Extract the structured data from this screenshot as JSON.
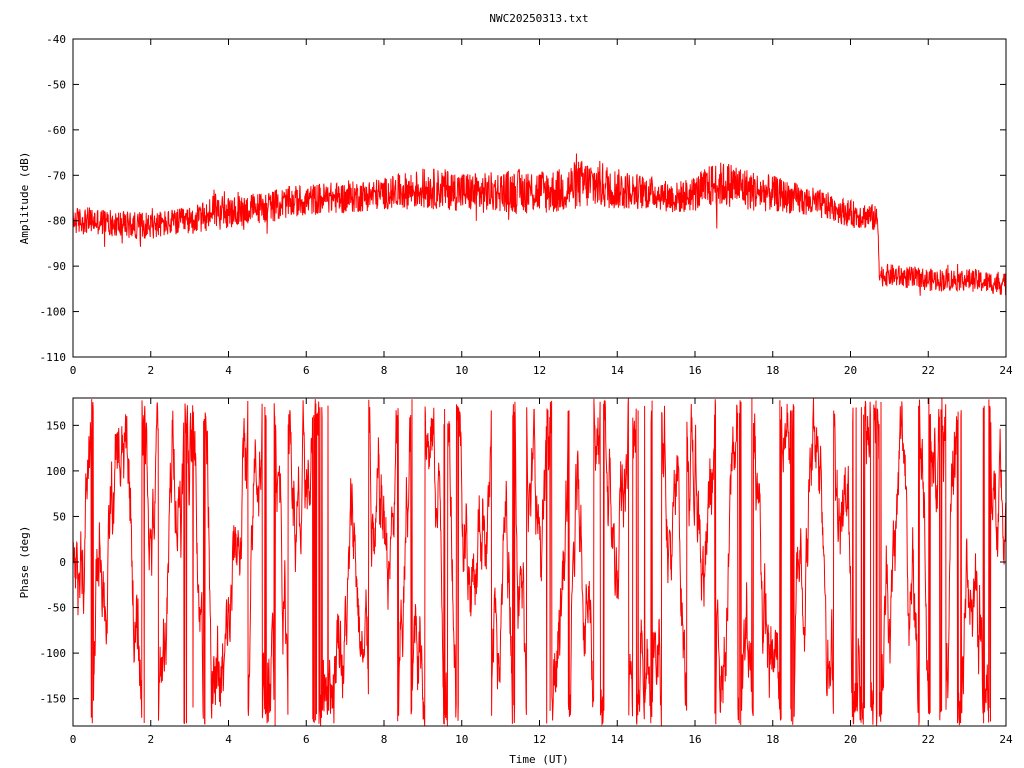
{
  "title": "NWC20250313.txt",
  "colors": {
    "trace": "#ff0000",
    "axis": "#000000",
    "background": "#ffffff"
  },
  "chart_data": [
    {
      "type": "line",
      "xlabel": "",
      "ylabel": "Amplitude (dB)",
      "xlim": [
        0,
        24
      ],
      "ylim": [
        -110,
        -40
      ],
      "xticks": [
        "0",
        "2",
        "4",
        "6",
        "8",
        "10",
        "12",
        "14",
        "16",
        "18",
        "20",
        "22",
        "24"
      ],
      "yticks": [
        "-40",
        "-50",
        "-60",
        "-70",
        "-80",
        "-90",
        "-100",
        "-110"
      ],
      "grid": false,
      "trace_x": [
        0,
        0.5,
        1,
        1.5,
        2,
        2.5,
        3,
        3.5,
        3.6,
        3.7,
        4,
        4.5,
        5,
        5.5,
        6,
        6.5,
        7,
        7.5,
        8,
        8.5,
        9,
        9.5,
        10,
        10.5,
        11,
        11.5,
        12,
        12.5,
        13,
        13.5,
        14,
        14.5,
        15,
        15.5,
        16,
        16.5,
        17,
        17.5,
        18,
        18.5,
        19,
        19.5,
        20,
        20.5,
        20.7,
        20.75,
        21,
        21.5,
        22,
        22.5,
        23,
        23.5,
        24
      ],
      "trace_mean": [
        -80,
        -80,
        -80.5,
        -81,
        -81,
        -80.5,
        -80,
        -79,
        -76,
        -78,
        -78.5,
        -77.5,
        -77,
        -76,
        -75.5,
        -75,
        -75,
        -74.5,
        -74,
        -73.5,
        -73,
        -73,
        -73.5,
        -74,
        -73.5,
        -73.5,
        -73.5,
        -73.5,
        -72,
        -72,
        -73,
        -73.5,
        -74,
        -75,
        -74,
        -72,
        -72,
        -73.5,
        -74,
        -75,
        -76,
        -77,
        -78.5,
        -79,
        -80,
        -92,
        -92,
        -92.5,
        -93,
        -93,
        -93,
        -93.5,
        -94
      ],
      "trace_spread": [
        3,
        3,
        3,
        3,
        3,
        3,
        3,
        3.5,
        5,
        4,
        3.5,
        3.5,
        3.5,
        3.5,
        3.5,
        3.5,
        3.5,
        3.5,
        3.5,
        4,
        4.5,
        4.5,
        4.5,
        4.5,
        4.5,
        5,
        5,
        5,
        5.5,
        5.5,
        4.5,
        4,
        3.5,
        3.5,
        4,
        5,
        5,
        4.5,
        4,
        3.5,
        3.5,
        3,
        3,
        3,
        3,
        2.5,
        2.5,
        2.5,
        2.5,
        2.5,
        2.5,
        2.5,
        2.5
      ]
    },
    {
      "type": "line",
      "xlabel": "Time (UT)",
      "ylabel": "Phase (deg)",
      "xlim": [
        0,
        24
      ],
      "ylim": [
        -180,
        180
      ],
      "xticks": [
        "0",
        "2",
        "4",
        "6",
        "8",
        "10",
        "12",
        "14",
        "16",
        "18",
        "20",
        "22",
        "24"
      ],
      "yticks": [
        "150",
        "100",
        "50",
        "0",
        "-50",
        "-100",
        "-150"
      ],
      "grid": false,
      "wrap_range": [
        -180,
        180
      ]
    }
  ]
}
